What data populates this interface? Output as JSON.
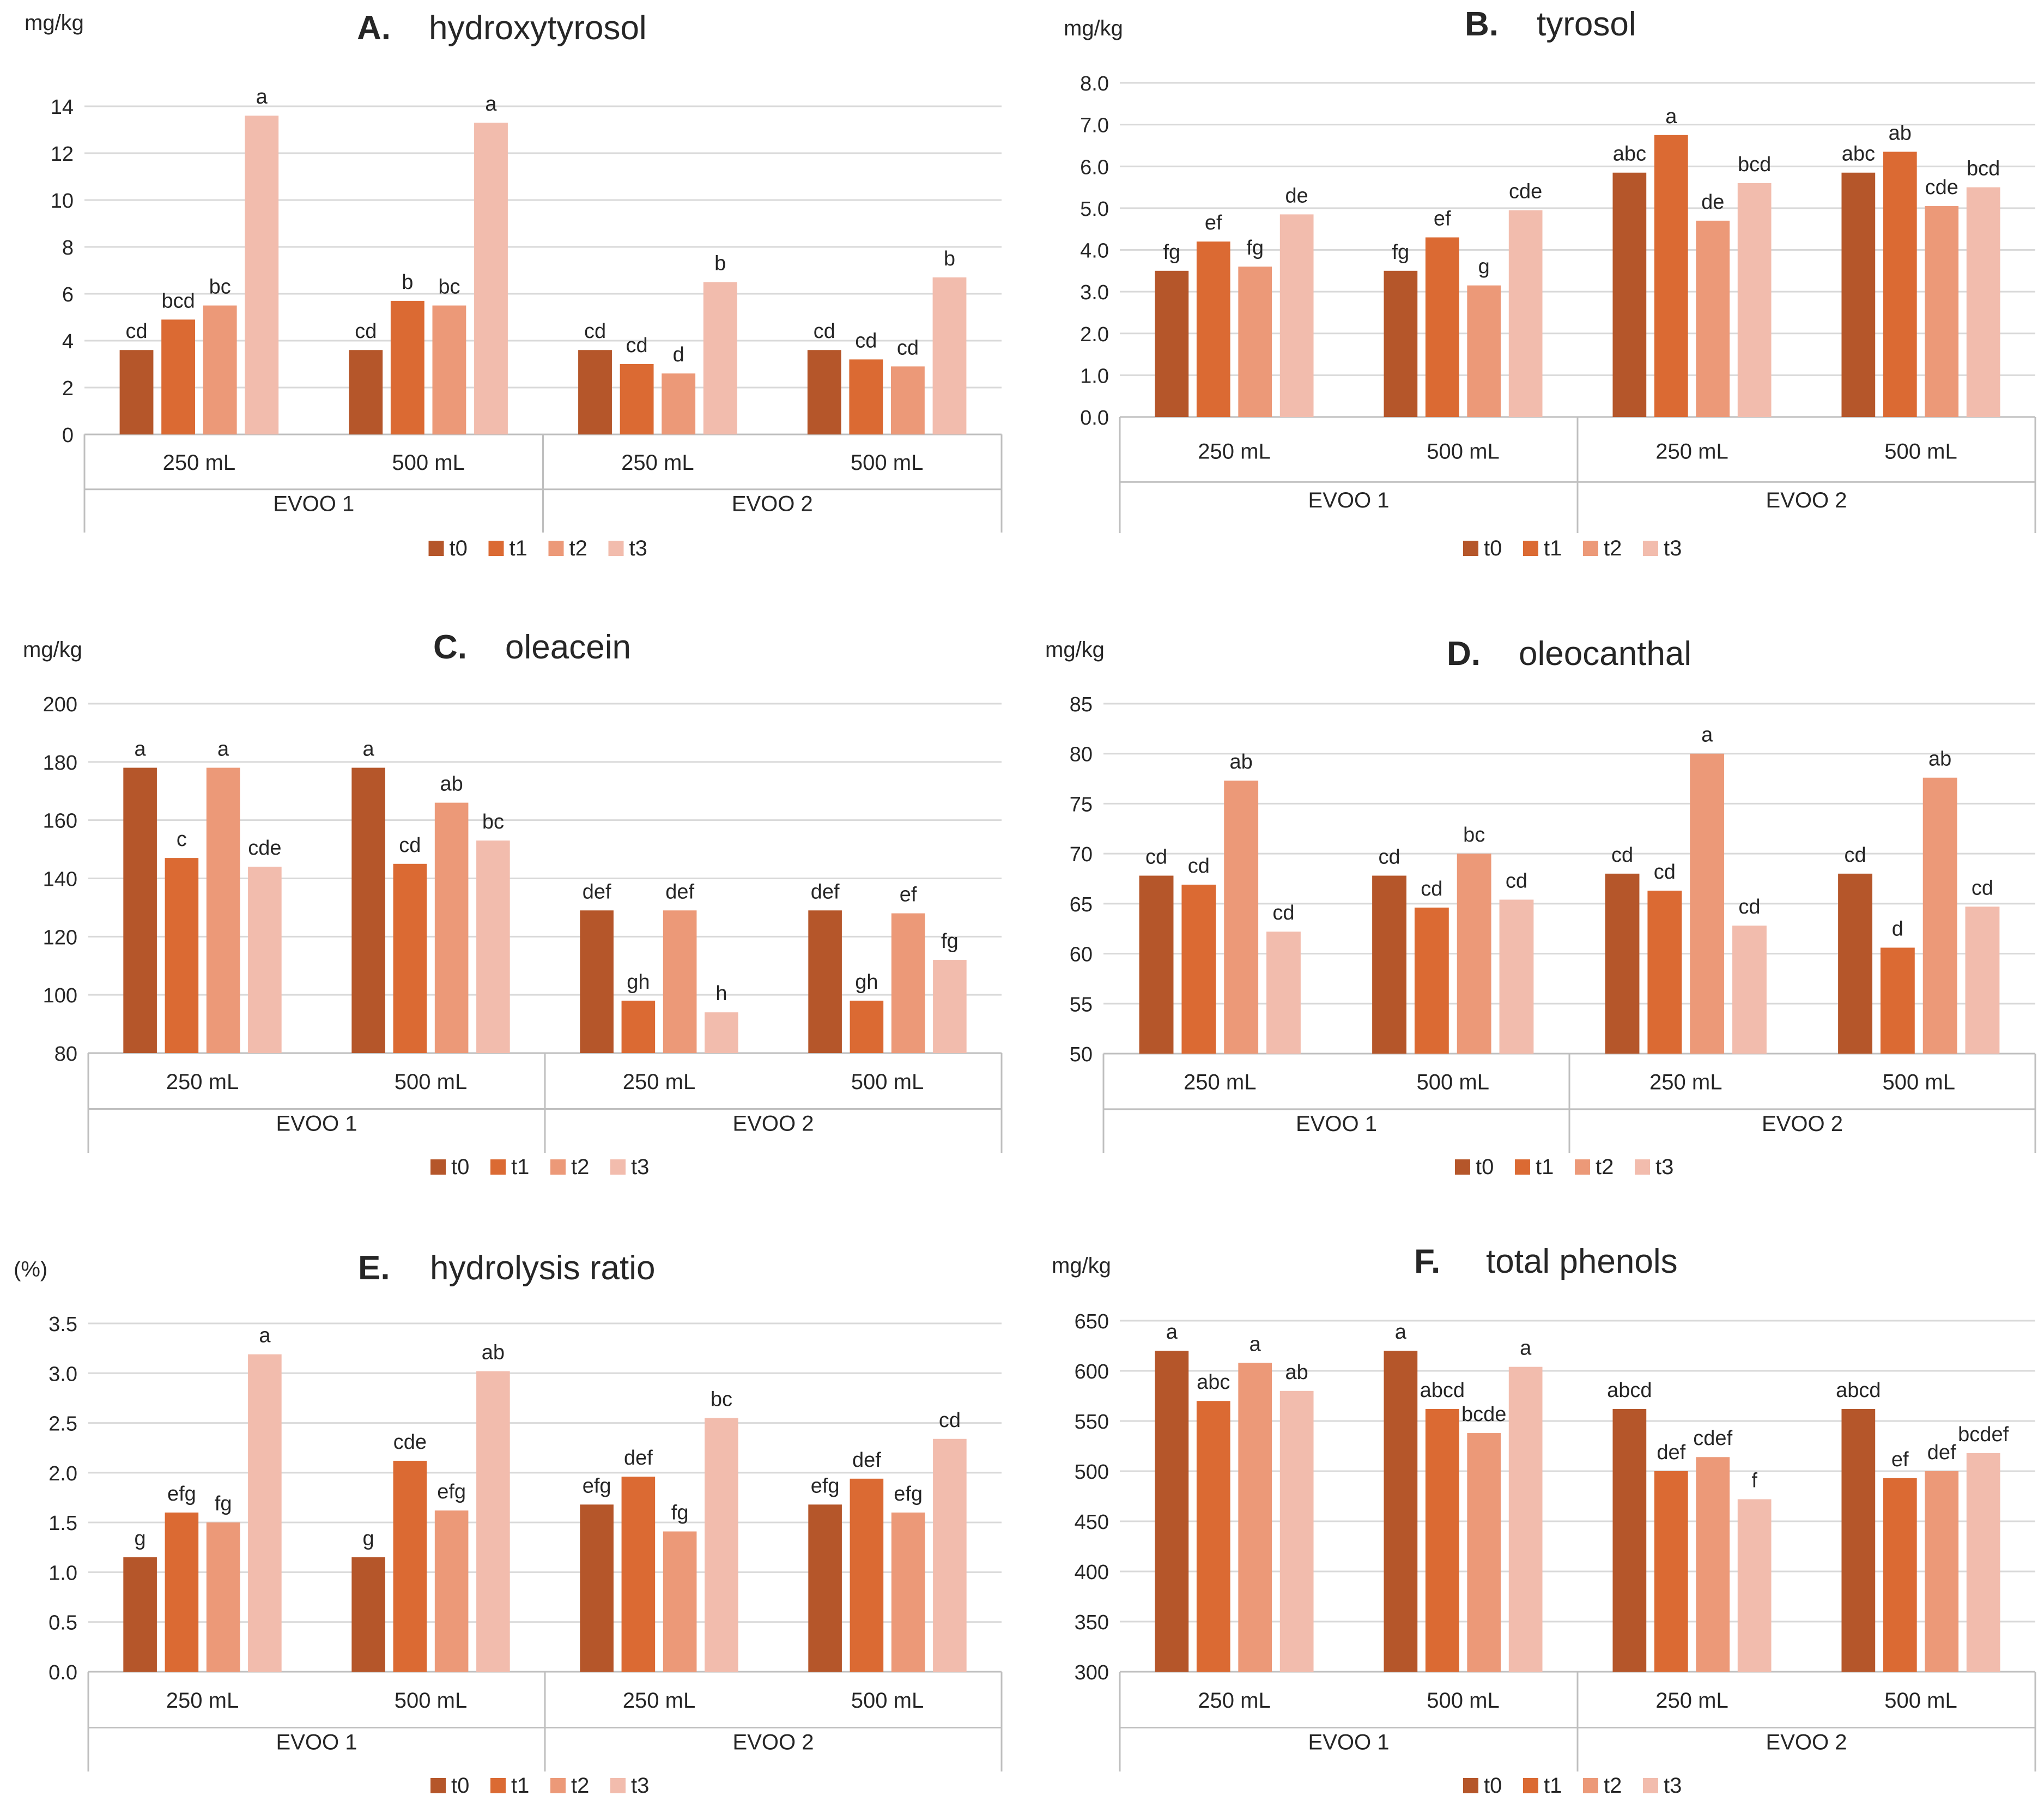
{
  "colors": {
    "t0": "#b5562a",
    "t1": "#db6a33",
    "t2": "#ec9978",
    "t3": "#f2bcad",
    "grid": "#d9d9d9",
    "axis": "#bfbfbf",
    "text": "#262626"
  },
  "legend": [
    "t0",
    "t1",
    "t2",
    "t3"
  ],
  "chart_data": [
    {
      "type": "bar",
      "panel": "A.",
      "title": "hydroxytyrosol",
      "ylabel": "mg/kg",
      "ylim": [
        0,
        14
      ],
      "yticks": [
        "0",
        "2",
        "4",
        "6",
        "8",
        "10",
        "12",
        "14"
      ],
      "categories": [
        "250 mL",
        "500 mL",
        "250 mL",
        "500 mL"
      ],
      "groups": [
        "EVOO 1",
        "EVOO 2"
      ],
      "series": [
        {
          "name": "t0",
          "values": [
            3.6,
            3.6,
            3.6,
            3.6
          ]
        },
        {
          "name": "t1",
          "values": [
            4.9,
            5.7,
            3.0,
            3.2
          ]
        },
        {
          "name": "t2",
          "values": [
            5.5,
            5.5,
            2.6,
            2.9
          ]
        },
        {
          "name": "t3",
          "values": [
            13.6,
            13.3,
            6.5,
            6.7
          ]
        }
      ],
      "letters": [
        [
          "cd",
          "bcd",
          "bc",
          "a"
        ],
        [
          "cd",
          "b",
          "bc",
          "a"
        ],
        [
          "cd",
          "cd",
          "d",
          "b"
        ],
        [
          "cd",
          "cd",
          "cd",
          "b"
        ]
      ]
    },
    {
      "type": "bar",
      "panel": "B.",
      "title": "tyrosol",
      "ylabel": "mg/kg",
      "ylim": [
        0,
        8
      ],
      "yticks": [
        "0.0",
        "1.0",
        "2.0",
        "3.0",
        "4.0",
        "5.0",
        "6.0",
        "7.0",
        "8.0"
      ],
      "categories": [
        "250 mL",
        "500 mL",
        "250 mL",
        "500 mL"
      ],
      "groups": [
        "EVOO 1",
        "EVOO 2"
      ],
      "series": [
        {
          "name": "t0",
          "values": [
            3.5,
            3.5,
            5.85,
            5.85
          ]
        },
        {
          "name": "t1",
          "values": [
            4.2,
            4.3,
            6.75,
            6.35
          ]
        },
        {
          "name": "t2",
          "values": [
            3.6,
            3.15,
            4.7,
            5.05
          ]
        },
        {
          "name": "t3",
          "values": [
            4.85,
            4.95,
            5.6,
            5.5
          ]
        }
      ],
      "letters": [
        [
          "fg",
          "ef",
          "fg",
          "de"
        ],
        [
          "fg",
          "ef",
          "g",
          "cde"
        ],
        [
          "abc",
          "a",
          "de",
          "bcd"
        ],
        [
          "abc",
          "ab",
          "cde",
          "bcd"
        ]
      ]
    },
    {
      "type": "bar",
      "panel": "C.",
      "title": "oleacein",
      "ylabel": "mg/kg",
      "ylim": [
        80,
        200
      ],
      "yticks": [
        "80",
        "100",
        "120",
        "140",
        "160",
        "180",
        "200"
      ],
      "categories": [
        "250 mL",
        "500 mL",
        "250 mL",
        "500 mL"
      ],
      "groups": [
        "EVOO 1",
        "EVOO 2"
      ],
      "series": [
        {
          "name": "t0",
          "values": [
            178,
            178,
            129,
            129
          ]
        },
        {
          "name": "t1",
          "values": [
            147,
            145,
            98,
            98
          ]
        },
        {
          "name": "t2",
          "values": [
            178,
            166,
            129,
            128
          ]
        },
        {
          "name": "t3",
          "values": [
            144,
            153,
            94,
            112
          ]
        }
      ],
      "letters": [
        [
          "a",
          "c",
          "a",
          "cde"
        ],
        [
          "a",
          "cd",
          "ab",
          "bc"
        ],
        [
          "def",
          "gh",
          "def",
          "h"
        ],
        [
          "def",
          "gh",
          "ef",
          "fg"
        ]
      ]
    },
    {
      "type": "bar",
      "panel": "D.",
      "title": "oleocanthal",
      "ylabel": "mg/kg",
      "ylim": [
        50,
        85
      ],
      "yticks": [
        "50",
        "55",
        "60",
        "65",
        "70",
        "75",
        "80",
        "85"
      ],
      "categories": [
        "250 mL",
        "500 mL",
        "250 mL",
        "500 mL"
      ],
      "groups": [
        "EVOO 1",
        "EVOO 2"
      ],
      "series": [
        {
          "name": "t0",
          "values": [
            67.8,
            67.8,
            68,
            68
          ]
        },
        {
          "name": "t1",
          "values": [
            66.9,
            64.6,
            66.3,
            60.6
          ]
        },
        {
          "name": "t2",
          "values": [
            77.3,
            70,
            80,
            77.6
          ]
        },
        {
          "name": "t3",
          "values": [
            62.2,
            65.4,
            62.8,
            64.7
          ]
        }
      ],
      "letters": [
        [
          "cd",
          "cd",
          "ab",
          "cd"
        ],
        [
          "cd",
          "cd",
          "bc",
          "cd"
        ],
        [
          "cd",
          "cd",
          "a",
          "cd"
        ],
        [
          "cd",
          "d",
          "ab",
          "cd"
        ]
      ]
    },
    {
      "type": "bar",
      "panel": "E.",
      "title": "hydrolysis ratio",
      "ylabel": "(%)",
      "ylim": [
        0,
        3.5
      ],
      "yticks": [
        "0.0",
        "0.5",
        "1.0",
        "1.5",
        "2.0",
        "2.5",
        "3.0",
        "3.5"
      ],
      "categories": [
        "250 mL",
        "500 mL",
        "250 mL",
        "500 mL"
      ],
      "groups": [
        "EVOO 1",
        "EVOO 2"
      ],
      "series": [
        {
          "name": "t0",
          "values": [
            1.15,
            1.15,
            1.68,
            1.68
          ]
        },
        {
          "name": "t1",
          "values": [
            1.6,
            2.12,
            1.96,
            1.94
          ]
        },
        {
          "name": "t2",
          "values": [
            1.5,
            1.62,
            1.41,
            1.6
          ]
        },
        {
          "name": "t3",
          "values": [
            3.19,
            3.02,
            2.55,
            2.34
          ]
        }
      ],
      "letters": [
        [
          "g",
          "efg",
          "fg",
          "a"
        ],
        [
          "g",
          "cde",
          "efg",
          "ab"
        ],
        [
          "efg",
          "def",
          "fg",
          "bc"
        ],
        [
          "efg",
          "def",
          "efg",
          "cd"
        ]
      ]
    },
    {
      "type": "bar",
      "panel": "F.",
      "title": "total phenols",
      "ylabel": "mg/kg",
      "ylim": [
        300,
        650
      ],
      "yticks": [
        "300",
        "350",
        "400",
        "450",
        "500",
        "550",
        "600",
        "650"
      ],
      "categories": [
        "250 mL",
        "500 mL",
        "250 mL",
        "500 mL"
      ],
      "groups": [
        "EVOO 1",
        "EVOO 2"
      ],
      "series": [
        {
          "name": "t0",
          "values": [
            620,
            620,
            562,
            562
          ]
        },
        {
          "name": "t1",
          "values": [
            570,
            562,
            500,
            493
          ]
        },
        {
          "name": "t2",
          "values": [
            608,
            538,
            514,
            500
          ]
        },
        {
          "name": "t3",
          "values": [
            580,
            604,
            472,
            518
          ]
        }
      ],
      "letters": [
        [
          "a",
          "abc",
          "a",
          "ab"
        ],
        [
          "a",
          "abcd",
          "bcde",
          "a"
        ],
        [
          "abcd",
          "def",
          "cdef",
          "f"
        ],
        [
          "abcd",
          "ef",
          "def",
          "bcdef"
        ]
      ]
    }
  ]
}
